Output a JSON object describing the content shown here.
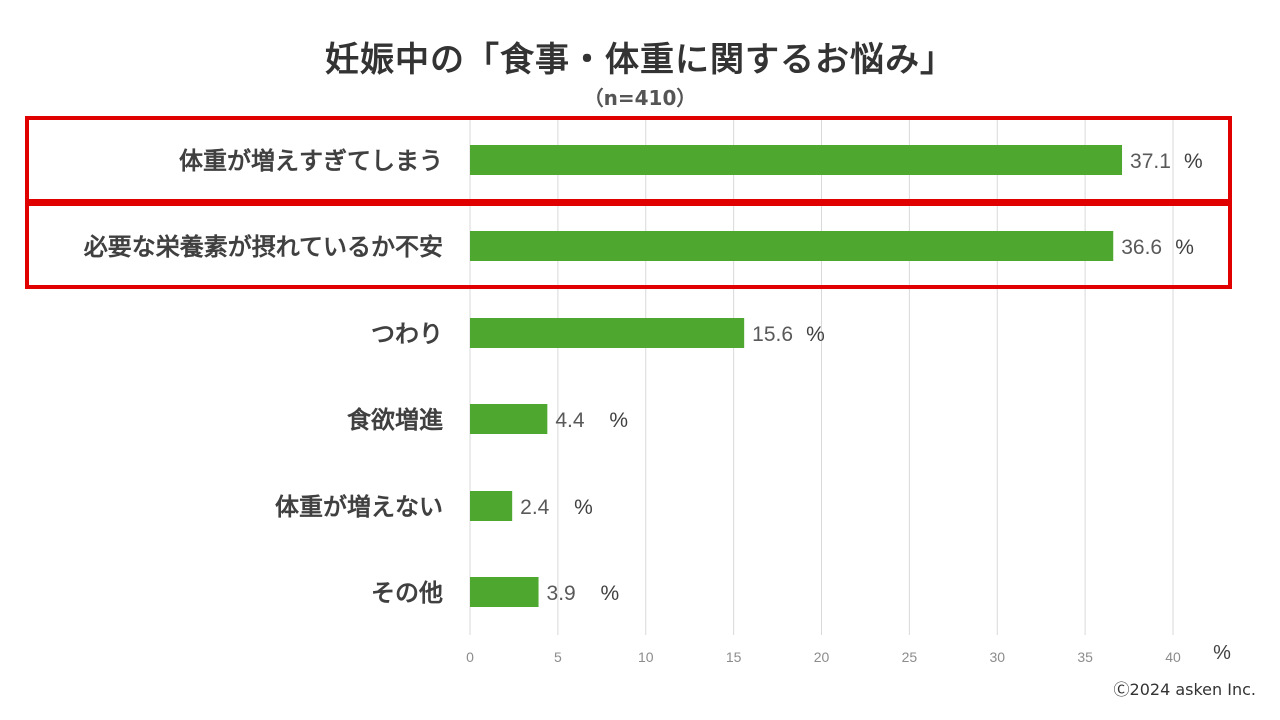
{
  "chart_data": {
    "type": "bar",
    "orientation": "horizontal",
    "title": "妊娠中の「食事・体重に関するお悩み」",
    "subtitle": "（n=410）",
    "categories": [
      "体重が増えすぎてしまう",
      "必要な栄養素が摂れているか不安",
      "つわり",
      "食欲増進",
      "体重が増えない",
      "その他"
    ],
    "values": [
      37.1,
      36.6,
      15.6,
      4.4,
      2.4,
      3.9
    ],
    "data_labels": [
      "37.1",
      "36.6",
      "15.6",
      "4.4",
      "2.4",
      "3.9"
    ],
    "label_unit": "%",
    "xlim": [
      0,
      40
    ],
    "x_ticks": [
      0,
      5,
      10,
      15,
      20,
      25,
      30,
      35,
      40
    ],
    "x_unit": "%",
    "grid": true,
    "highlighted_categories": [
      0,
      1
    ],
    "colors": {
      "bar": "#4ea72e",
      "highlight_box": "#e00000",
      "grid": "#d9d9d9"
    }
  },
  "copyright": "Ⓒ2024 asken Inc."
}
